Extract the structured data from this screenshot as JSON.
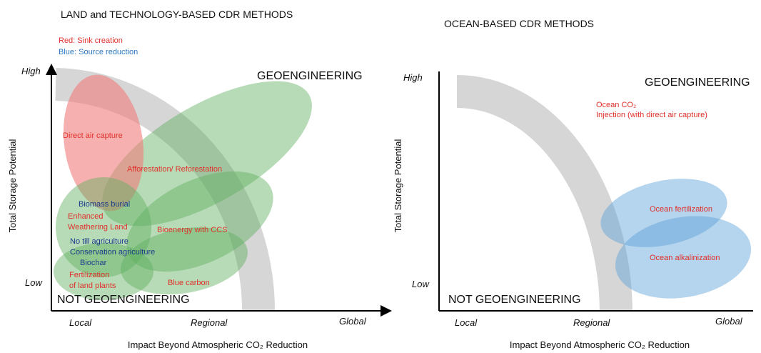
{
  "left_panel": {
    "title": "LAND and TECHNOLOGY-BASED CDR METHODS",
    "legend": [
      "Red: Sink creation",
      "Blue: Source reduction"
    ],
    "y_axis_title": "Total Storage Potential",
    "x_axis_title": "Impact Beyond Atmospheric CO₂ Reduction",
    "y_levels": [
      "High",
      "Low"
    ],
    "x_levels": [
      "Local",
      "Regional",
      "Global"
    ],
    "regions": {
      "top": "GEOENGINEERING",
      "bottom": "NOT GEOENGINEERING"
    },
    "methods": [
      "Direct air capture",
      "Afforestation/ Reforestation",
      "Biomass burial",
      "Enhanced",
      "Weathering Land",
      "Bioenergy with CCS",
      "No till agriculture",
      "Conservation agriculture",
      "Biochar",
      "Fertilization",
      "of land plants",
      "Blue carbon"
    ]
  },
  "right_panel": {
    "title": "OCEAN-BASED CDR METHODS",
    "y_axis_title": "Total Storage Potential",
    "x_axis_title": "Impact Beyond Atmospheric CO₂ Reduction",
    "y_levels": [
      "High",
      "Low"
    ],
    "x_levels": [
      "Local",
      "Regional",
      "Global"
    ],
    "regions": {
      "top": "GEOENGINEERING",
      "bottom": "NOT GEOENGINEERING"
    },
    "methods": [
      "Ocean CO₂",
      "Injection (with direct air capture)",
      "Ocean fertilization",
      "Ocean alkalinization"
    ]
  }
}
